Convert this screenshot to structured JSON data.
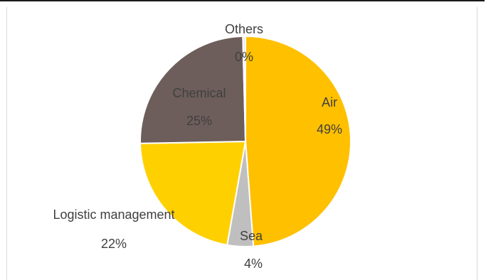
{
  "chart_data": {
    "type": "pie",
    "slices": [
      {
        "label": "Air",
        "value": 49,
        "pct_label": "49%",
        "color": "#FFC000"
      },
      {
        "label": "Sea",
        "value": 4,
        "pct_label": "4%",
        "color": "#BFBFBF"
      },
      {
        "label": "Logistic management",
        "value": 22,
        "pct_label": "22%",
        "color": "#FFD000"
      },
      {
        "label": "Chemical",
        "value": 25,
        "pct_label": "25%",
        "color": "#6D5E5B"
      },
      {
        "label": "Others",
        "value": 0.4,
        "pct_label": "0%",
        "color": "#E8E8E8"
      }
    ],
    "start_angle_deg": 0,
    "direction": "clockwise"
  }
}
